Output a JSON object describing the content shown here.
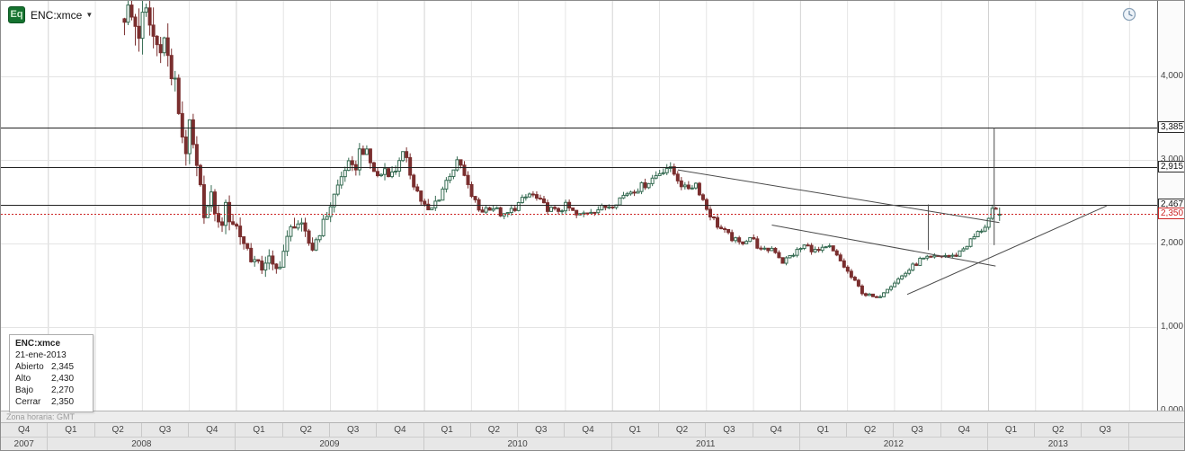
{
  "header": {
    "logo_text": "Eq",
    "symbol": "ENC:xmce",
    "dropdown_glyph": "▼"
  },
  "status_bar": {
    "timezone": "Zona horaria: GMT"
  },
  "tooltip": {
    "symbol": "ENC:xmce",
    "date": "21-ene-2013",
    "rows": [
      {
        "label": "Abierto",
        "value": "2,345"
      },
      {
        "label": "Alto",
        "value": "2,430"
      },
      {
        "label": "Bajo",
        "value": "2,270"
      },
      {
        "label": "Cerrar",
        "value": "2,350"
      }
    ]
  },
  "price_axis": {
    "ticks": [
      {
        "label": "4,000",
        "value": 4
      },
      {
        "label": "3,000",
        "value": 3
      },
      {
        "label": "2,000",
        "value": 2
      },
      {
        "label": "1,000",
        "value": 1
      },
      {
        "label": "0,000",
        "value": 0
      }
    ]
  },
  "time_axis": {
    "quarter_labels": [
      "Q4",
      "Q1",
      "Q2",
      "Q3",
      "Q4",
      "Q1",
      "Q2",
      "Q3",
      "Q4",
      "Q1",
      "Q2",
      "Q3",
      "Q4",
      "Q1",
      "Q2",
      "Q3",
      "Q4",
      "Q1",
      "Q2",
      "Q3",
      "Q4",
      "Q1",
      "Q2",
      "Q3"
    ],
    "years": [
      {
        "label": "2007",
        "quarters": 1
      },
      {
        "label": "2008",
        "quarters": 4
      },
      {
        "label": "2009",
        "quarters": 4
      },
      {
        "label": "2010",
        "quarters": 4
      },
      {
        "label": "2011",
        "quarters": 4
      },
      {
        "label": "2012",
        "quarters": 4
      },
      {
        "label": "2013",
        "quarters": 3
      }
    ]
  },
  "chart_data": {
    "type": "candlestick",
    "symbol": "ENC:xmce",
    "x_axis_range_years": [
      2007.75,
      2013.9
    ],
    "y_axis_range": [
      0,
      4.9
    ],
    "t_start": 2008.4,
    "t_end": 2013.055,
    "weekly_close_anchors": [
      [
        2008.4,
        4.8
      ],
      [
        2008.48,
        4.55
      ],
      [
        2008.52,
        4.72
      ],
      [
        2008.57,
        4.35
      ],
      [
        2008.6,
        4.55
      ],
      [
        2008.64,
        4.1
      ],
      [
        2008.68,
        3.75
      ],
      [
        2008.72,
        3.1
      ],
      [
        2008.75,
        3.35
      ],
      [
        2008.79,
        2.75
      ],
      [
        2008.83,
        2.35
      ],
      [
        2008.87,
        2.55
      ],
      [
        2008.9,
        2.2
      ],
      [
        2008.94,
        2.4
      ],
      [
        2009.0,
        2.18
      ],
      [
        2009.06,
        1.9
      ],
      [
        2009.12,
        1.68
      ],
      [
        2009.16,
        1.85
      ],
      [
        2009.2,
        1.63
      ],
      [
        2009.27,
        2.05
      ],
      [
        2009.31,
        2.32
      ],
      [
        2009.35,
        2.1
      ],
      [
        2009.4,
        1.95
      ],
      [
        2009.46,
        2.25
      ],
      [
        2009.52,
        2.6
      ],
      [
        2009.58,
        2.95
      ],
      [
        2009.62,
        2.85
      ],
      [
        2009.66,
        3.18
      ],
      [
        2009.71,
        2.95
      ],
      [
        2009.75,
        2.78
      ],
      [
        2009.79,
        2.92
      ],
      [
        2009.83,
        2.8
      ],
      [
        2009.87,
        3.1
      ],
      [
        2009.92,
        2.85
      ],
      [
        2009.97,
        2.55
      ],
      [
        2010.02,
        2.35
      ],
      [
        2010.08,
        2.6
      ],
      [
        2010.14,
        2.88
      ],
      [
        2010.18,
        2.98
      ],
      [
        2010.23,
        2.65
      ],
      [
        2010.29,
        2.38
      ],
      [
        2010.35,
        2.45
      ],
      [
        2010.42,
        2.32
      ],
      [
        2010.5,
        2.48
      ],
      [
        2010.56,
        2.6
      ],
      [
        2010.63,
        2.45
      ],
      [
        2010.69,
        2.38
      ],
      [
        2010.75,
        2.45
      ],
      [
        2010.81,
        2.32
      ],
      [
        2010.88,
        2.4
      ],
      [
        2010.94,
        2.42
      ],
      [
        2011.0,
        2.48
      ],
      [
        2011.08,
        2.62
      ],
      [
        2011.15,
        2.68
      ],
      [
        2011.22,
        2.8
      ],
      [
        2011.28,
        2.92
      ],
      [
        2011.33,
        2.82
      ],
      [
        2011.38,
        2.65
      ],
      [
        2011.44,
        2.72
      ],
      [
        2011.5,
        2.4
      ],
      [
        2011.56,
        2.2
      ],
      [
        2011.62,
        2.08
      ],
      [
        2011.67,
        2.0
      ],
      [
        2011.73,
        2.08
      ],
      [
        2011.79,
        1.9
      ],
      [
        2011.85,
        1.95
      ],
      [
        2011.9,
        1.78
      ],
      [
        2011.96,
        1.88
      ],
      [
        2012.02,
        1.98
      ],
      [
        2012.08,
        1.9
      ],
      [
        2012.15,
        1.95
      ],
      [
        2012.21,
        1.78
      ],
      [
        2012.27,
        1.58
      ],
      [
        2012.33,
        1.4
      ],
      [
        2012.4,
        1.34
      ],
      [
        2012.46,
        1.48
      ],
      [
        2012.52,
        1.58
      ],
      [
        2012.58,
        1.7
      ],
      [
        2012.63,
        1.8
      ],
      [
        2012.69,
        1.82
      ],
      [
        2012.75,
        1.86
      ],
      [
        2012.81,
        1.84
      ],
      [
        2012.87,
        1.96
      ],
      [
        2012.92,
        2.08
      ],
      [
        2012.98,
        2.22
      ],
      [
        2013.02,
        2.4
      ],
      [
        2013.055,
        2.35
      ]
    ],
    "last_candle": {
      "date": "21-ene-2013",
      "open": 2.345,
      "high": 2.43,
      "low": 2.27,
      "close": 2.35
    },
    "levels": [
      {
        "price": 3.385,
        "label": "3,385",
        "style": "solid"
      },
      {
        "price": 2.915,
        "label": "2,915",
        "style": "solid"
      },
      {
        "price": 2.467,
        "label": "2,467",
        "style": "solid"
      },
      {
        "price": 2.35,
        "label": "2,350",
        "style": "last_price_dotted"
      }
    ],
    "trendlines": [
      {
        "t1": 2011.35,
        "p1": 2.88,
        "t2": 2013.06,
        "p2": 2.25
      },
      {
        "t1": 2011.85,
        "p1": 2.22,
        "t2": 2013.04,
        "p2": 1.73
      },
      {
        "t1": 2012.57,
        "p1": 1.39,
        "t2": 2013.63,
        "p2": 2.45
      }
    ],
    "vertical_segments": [
      {
        "t": 2012.68,
        "p1": 2.467,
        "p2": 1.92
      },
      {
        "t": 2013.03,
        "p1": 3.385,
        "p2": 1.98
      }
    ],
    "colors": {
      "up": "#356b52",
      "up_fill": "#ffffff",
      "down": "#7a2e2e",
      "level_line": "#222222",
      "last_price": "#cc2222",
      "trendline": "#4a4a4a",
      "grid": "#e4e4e4",
      "grid_year": "#d2d2d2"
    }
  }
}
